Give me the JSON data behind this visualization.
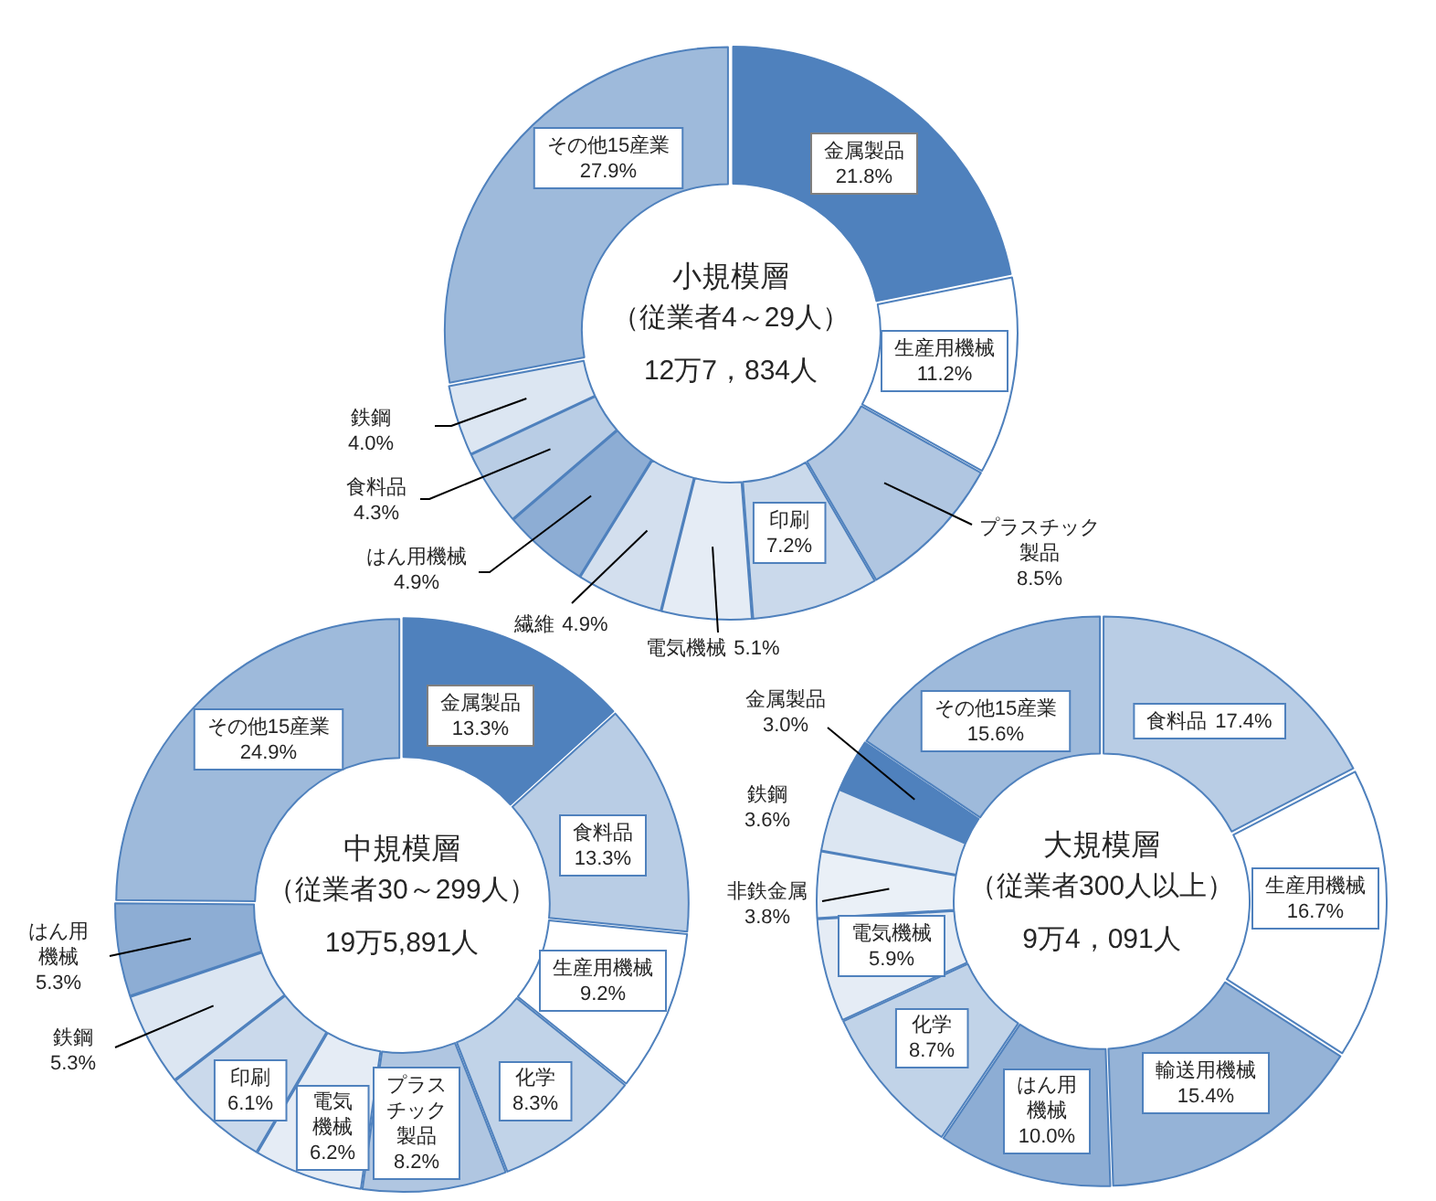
{
  "chart_data": [
    {
      "type": "donut",
      "title": "小規模層",
      "subtitle": "（従業者4～29人）",
      "annotations": [
        "12万7，834人"
      ],
      "categories": [
        "金属製品",
        "生産用機械",
        "プラスチック製品",
        "印刷",
        "電気機械",
        "繊維",
        "はん用機械",
        "食料品",
        "鉄鋼",
        "その他15産業"
      ],
      "values": [
        21.8,
        11.2,
        8.5,
        7.2,
        5.1,
        4.9,
        4.9,
        4.3,
        4.0,
        27.9
      ],
      "value_labels": [
        "21.8%",
        "11.2%",
        "8.5%",
        "7.2%",
        "5.1%",
        "4.9%",
        "4.9%",
        "4.3%",
        "4.0%",
        "27.9%"
      ],
      "colors": [
        "#4f81bd",
        "#ffffff",
        "#b0c6e1",
        "#cad9eb",
        "#e5ecf5",
        "#d3dfee",
        "#8dadd4",
        "#b9cde5",
        "#dce6f2",
        "#9ebadb"
      ]
    },
    {
      "type": "donut",
      "title": "中規模層",
      "subtitle": "（従業者30～299人）",
      "annotations": [
        "19万5,891人"
      ],
      "categories": [
        "金属製品",
        "食料品",
        "生産用機械",
        "化学",
        "プラスチック製品",
        "電気機械",
        "印刷",
        "鉄鋼",
        "はん用機械",
        "その他15産業"
      ],
      "values": [
        13.3,
        13.3,
        9.2,
        8.3,
        8.2,
        6.2,
        6.1,
        5.3,
        5.3,
        24.9
      ],
      "value_labels": [
        "13.3%",
        "13.3%",
        "9.2%",
        "8.3%",
        "8.2%",
        "6.2%",
        "6.1%",
        "5.3%",
        "5.3%",
        "24.9%"
      ],
      "colors": [
        "#4f81bd",
        "#b9cde5",
        "#ffffff",
        "#c1d3e8",
        "#b0c6e1",
        "#e5ecf5",
        "#cad9eb",
        "#dce6f2",
        "#8dadd4",
        "#9ebadb"
      ]
    },
    {
      "type": "donut",
      "title": "大規模層",
      "subtitle": "（従業者300人以上）",
      "annotations": [
        "9万4，091人"
      ],
      "categories": [
        "食料品",
        "生産用機械",
        "輸送用機械",
        "はん用機械",
        "化学",
        "電気機械",
        "非鉄金属",
        "鉄鋼",
        "金属製品",
        "その他15産業"
      ],
      "values": [
        17.4,
        16.7,
        15.4,
        10.0,
        8.7,
        5.9,
        3.8,
        3.6,
        3.0,
        15.6
      ],
      "value_labels": [
        "17.4%",
        "16.7%",
        "15.4%",
        "10.0%",
        "8.7%",
        "5.9%",
        "3.8%",
        "3.6%",
        "3.0%",
        "15.6%"
      ],
      "colors": [
        "#b9cde5",
        "#ffffff",
        "#95b3d7",
        "#8dadd4",
        "#c1d3e8",
        "#e5ecf5",
        "#eaf0f7",
        "#dce6f2",
        "#4f81bd",
        "#9ebadb"
      ]
    }
  ]
}
